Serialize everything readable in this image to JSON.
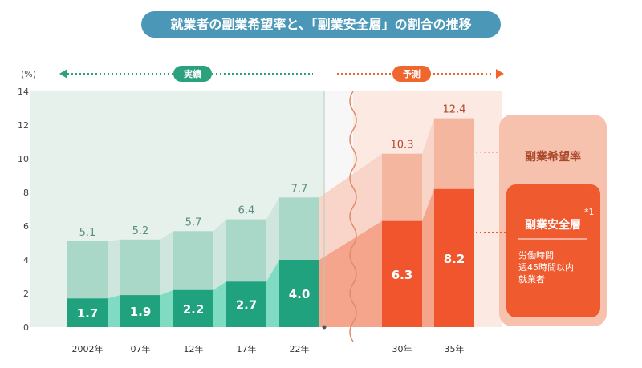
{
  "title": "就業者の副業希望率と、「副業安全層」の割合の推移",
  "unit_label": "(%)",
  "period_actual": "実績",
  "period_forecast": "予測",
  "chart_data": {
    "type": "bar",
    "title": "就業者の副業希望率と、「副業安全層」の割合の推移",
    "ylabel": "(%)",
    "ylim": [
      0,
      14
    ],
    "yticks": [
      0,
      2,
      4,
      6,
      8,
      10,
      12,
      14
    ],
    "categories": [
      "2002年",
      "07年",
      "12年",
      "17年",
      "22年",
      "30年",
      "35年"
    ],
    "series": [
      {
        "name": "副業希望率",
        "values": [
          5.1,
          5.2,
          5.7,
          6.4,
          7.7,
          10.3,
          12.4
        ]
      },
      {
        "name": "副業安全層",
        "values": [
          1.7,
          1.9,
          2.2,
          2.7,
          4.0,
          6.3,
          8.2
        ]
      }
    ],
    "value_labels_top": [
      "5.1",
      "5.2",
      "5.7",
      "6.4",
      "7.7",
      "10.3",
      "12.4"
    ],
    "value_labels_inner": [
      "1.7",
      "1.9",
      "2.2",
      "2.7",
      "4.0",
      "6.3",
      "8.2"
    ],
    "forecast_start_index": 5,
    "grid": false
  },
  "legend": {
    "hope_label": "副業希望率",
    "safe_label": "副業安全層",
    "safe_note_mark": "*1",
    "safe_desc_lines": [
      "労働時間",
      "週45時間以内",
      "就業者"
    ]
  },
  "colors": {
    "actual_bg": "#e6f1ec",
    "actual_light": "#a9d8c9",
    "actual_dark": "#21a27f",
    "actual_bridge_light": "#cfe6de",
    "actual_bridge_dark": "#7fdcc3",
    "forecast_bg": "#fbe9e2",
    "forecast_light": "#f5b6a0",
    "forecast_dark": "#f0552e",
    "forecast_bridge_light": "#f8d5c8",
    "forecast_bridge_dark": "#f4a58b",
    "title_pill": "#4a97b8",
    "pill_actual": "#2ba17e",
    "pill_forecast": "#f0662f",
    "legend_outer": "#f6c1ad",
    "legend_inner": "#ef5a2f"
  }
}
